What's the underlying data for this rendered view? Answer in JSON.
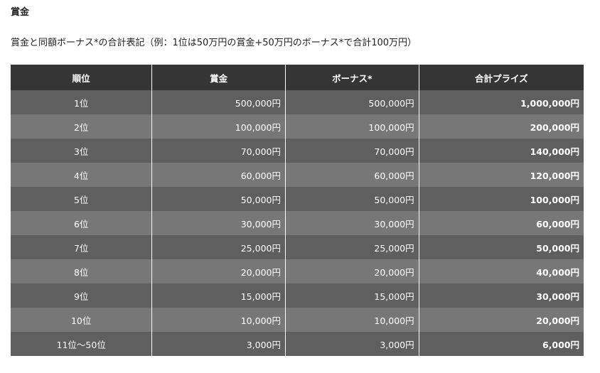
{
  "title": "賞金",
  "description": "賞金と同額ボーナス*の合計表記（例：1位は50万円の賞金+50万円のボーナス*で合計100万円）",
  "table": {
    "headers": [
      "順位",
      "賞金",
      "ボーナス*",
      "合計プライズ"
    ],
    "rows": [
      [
        "1位",
        "500,000円",
        "500,000円",
        "1,000,000円"
      ],
      [
        "2位",
        "100,000円",
        "100,000円",
        "200,000円"
      ],
      [
        "3位",
        "70,000円",
        "70,000円",
        "140,000円"
      ],
      [
        "4位",
        "60,000円",
        "60,000円",
        "120,000円"
      ],
      [
        "5位",
        "50,000円",
        "50,000円",
        "100,000円"
      ],
      [
        "6位",
        "30,000円",
        "30,000円",
        "60,000円"
      ],
      [
        "7位",
        "25,000円",
        "25,000円",
        "50,000円"
      ],
      [
        "8位",
        "20,000円",
        "20,000円",
        "40,000円"
      ],
      [
        "9位",
        "15,000円",
        "15,000円",
        "30,000円"
      ],
      [
        "10位",
        "10,000円",
        "10,000円",
        "20,000円"
      ],
      [
        "11位〜50位",
        "3,000円",
        "3,000円",
        "6,000円"
      ]
    ]
  }
}
